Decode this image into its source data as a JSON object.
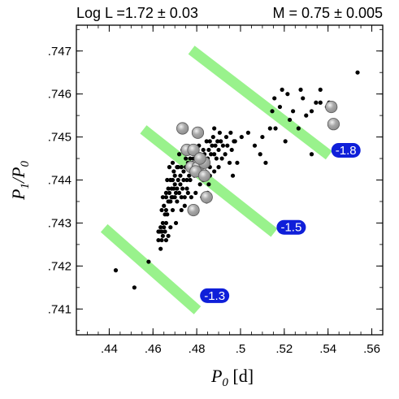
{
  "header": {
    "left": "Log  L =1.72 ± 0.03",
    "right": "M  = 0.75 ± 0.005"
  },
  "chart_data": {
    "type": "scatter",
    "title": "",
    "xlabel_main": "P",
    "xlabel_sub": "0",
    "xlabel_unit": "[d]",
    "ylabel_num": "P",
    "ylabel_num_sub": "1",
    "ylabel_den": "P",
    "ylabel_den_sub": "0",
    "xlim": [
      0.425,
      0.565
    ],
    "ylim": [
      0.7404,
      0.7476
    ],
    "x_ticks": [
      0.44,
      0.46,
      0.48,
      0.5,
      0.52,
      0.54,
      0.56
    ],
    "x_tick_labels": [
      ".44",
      ".46",
      ".48",
      ".5",
      ".52",
      ".54",
      ".56"
    ],
    "y_ticks": [
      0.741,
      0.742,
      0.743,
      0.744,
      0.745,
      0.746,
      0.747
    ],
    "y_tick_labels": [
      ".741",
      ".742",
      ".743",
      ".744",
      ".745",
      ".746",
      ".747"
    ],
    "grid": false,
    "colors": {
      "band": "#99f28c",
      "observed_points": "#000000",
      "model_spheres": "#8a8a8a",
      "label_box": "#0f1fd9",
      "label_text": "#ffffff"
    },
    "bands": [
      {
        "label": "-1.3",
        "from": [
          0.4395,
          0.7428
        ],
        "to": [
          0.4785,
          0.74105
        ]
      },
      {
        "label": "-1.5",
        "from": [
          0.4575,
          0.7451
        ],
        "to": [
          0.5135,
          0.74285
        ]
      },
      {
        "label": "-1.8",
        "from": [
          0.4795,
          0.74695
        ],
        "to": [
          0.5385,
          0.74465
        ]
      }
    ],
    "band_labels": [
      {
        "text": "-1.3",
        "x": 0.4815,
        "y": 0.74131
      },
      {
        "text": "-1.5",
        "x": 0.5165,
        "y": 0.7429
      },
      {
        "text": "-1.8",
        "x": 0.5415,
        "y": 0.74469
      }
    ],
    "observed_points": [
      [
        0.443,
        0.7419
      ],
      [
        0.4515,
        0.7415
      ],
      [
        0.458,
        0.7421
      ],
      [
        0.4625,
        0.7428
      ],
      [
        0.4625,
        0.7426
      ],
      [
        0.463,
        0.7428
      ],
      [
        0.4635,
        0.7424
      ],
      [
        0.4635,
        0.7429
      ],
      [
        0.464,
        0.7426
      ],
      [
        0.464,
        0.7428
      ],
      [
        0.4645,
        0.743
      ],
      [
        0.4645,
        0.7427
      ],
      [
        0.465,
        0.7434
      ],
      [
        0.465,
        0.7429
      ],
      [
        0.4655,
        0.7428
      ],
      [
        0.4655,
        0.7432
      ],
      [
        0.466,
        0.7437
      ],
      [
        0.466,
        0.7436
      ],
      [
        0.466,
        0.7433
      ],
      [
        0.466,
        0.743
      ],
      [
        0.4665,
        0.7432
      ],
      [
        0.467,
        0.7427
      ],
      [
        0.467,
        0.7435
      ],
      [
        0.467,
        0.7438
      ],
      [
        0.4675,
        0.7437
      ],
      [
        0.4675,
        0.7435
      ],
      [
        0.468,
        0.744
      ],
      [
        0.468,
        0.7435
      ],
      [
        0.468,
        0.7429
      ],
      [
        0.4685,
        0.7438
      ],
      [
        0.4685,
        0.7436
      ],
      [
        0.469,
        0.744
      ],
      [
        0.469,
        0.7436
      ],
      [
        0.469,
        0.7433
      ],
      [
        0.4695,
        0.7438
      ],
      [
        0.4695,
        0.7442
      ],
      [
        0.47,
        0.7436
      ],
      [
        0.47,
        0.7439
      ],
      [
        0.47,
        0.7441
      ],
      [
        0.4705,
        0.7437
      ],
      [
        0.4705,
        0.743
      ],
      [
        0.471,
        0.7443
      ],
      [
        0.471,
        0.7438
      ],
      [
        0.471,
        0.7435
      ],
      [
        0.4715,
        0.7443
      ],
      [
        0.4715,
        0.744
      ],
      [
        0.472,
        0.7437
      ],
      [
        0.472,
        0.7446
      ],
      [
        0.4725,
        0.7441
      ],
      [
        0.4725,
        0.7439
      ],
      [
        0.473,
        0.7436
      ],
      [
        0.473,
        0.7443
      ],
      [
        0.473,
        0.7433
      ],
      [
        0.4735,
        0.7447
      ],
      [
        0.4735,
        0.7438
      ],
      [
        0.474,
        0.7442
      ],
      [
        0.474,
        0.744
      ],
      [
        0.4745,
        0.7436
      ],
      [
        0.4745,
        0.7434
      ],
      [
        0.475,
        0.7445
      ],
      [
        0.475,
        0.7443
      ],
      [
        0.4755,
        0.744
      ],
      [
        0.4755,
        0.7438
      ],
      [
        0.476,
        0.7437
      ],
      [
        0.476,
        0.7444
      ],
      [
        0.4765,
        0.7441
      ],
      [
        0.477,
        0.7445
      ],
      [
        0.477,
        0.744
      ],
      [
        0.4775,
        0.7436
      ],
      [
        0.478,
        0.7442
      ],
      [
        0.478,
        0.7444
      ],
      [
        0.4785,
        0.7445
      ],
      [
        0.479,
        0.7441
      ],
      [
        0.479,
        0.7443
      ],
      [
        0.4795,
        0.7446
      ],
      [
        0.48,
        0.7444
      ],
      [
        0.48,
        0.7446
      ],
      [
        0.4805,
        0.7442
      ],
      [
        0.481,
        0.7448
      ],
      [
        0.481,
        0.7445
      ],
      [
        0.4815,
        0.7446
      ],
      [
        0.482,
        0.7443
      ],
      [
        0.4825,
        0.7445
      ],
      [
        0.483,
        0.7447
      ],
      [
        0.483,
        0.7444
      ],
      [
        0.4835,
        0.7446
      ],
      [
        0.484,
        0.7442
      ],
      [
        0.4845,
        0.7449
      ],
      [
        0.485,
        0.7445
      ],
      [
        0.4855,
        0.7447
      ],
      [
        0.486,
        0.7449
      ],
      [
        0.486,
        0.7443
      ],
      [
        0.4865,
        0.7446
      ],
      [
        0.487,
        0.7448
      ],
      [
        0.4875,
        0.745
      ],
      [
        0.488,
        0.7446
      ],
      [
        0.488,
        0.7452
      ],
      [
        0.4885,
        0.7448
      ],
      [
        0.489,
        0.7445
      ],
      [
        0.4895,
        0.7449
      ],
      [
        0.49,
        0.7447
      ],
      [
        0.4905,
        0.7451
      ],
      [
        0.491,
        0.7449
      ],
      [
        0.4915,
        0.7445
      ],
      [
        0.492,
        0.7448
      ],
      [
        0.493,
        0.7446
      ],
      [
        0.4935,
        0.745
      ],
      [
        0.494,
        0.7448
      ],
      [
        0.495,
        0.7444
      ],
      [
        0.496,
        0.7447
      ],
      [
        0.497,
        0.7449
      ],
      [
        0.483,
        0.744
      ],
      [
        0.486,
        0.7441
      ],
      [
        0.488,
        0.7442
      ],
      [
        0.49,
        0.7443
      ],
      [
        0.4845,
        0.7435
      ],
      [
        0.4795,
        0.7437
      ],
      [
        0.4795,
        0.7433
      ],
      [
        0.4815,
        0.7439
      ],
      [
        0.4855,
        0.7439
      ],
      [
        0.4825,
        0.7436
      ],
      [
        0.485,
        0.7437
      ],
      [
        0.469,
        0.7444
      ],
      [
        0.4665,
        0.744
      ],
      [
        0.4645,
        0.7436
      ],
      [
        0.464,
        0.7433
      ],
      [
        0.4675,
        0.7443
      ],
      [
        0.466,
        0.7426
      ],
      [
        0.5005,
        0.745
      ],
      [
        0.5035,
        0.7451
      ],
      [
        0.5065,
        0.7448
      ],
      [
        0.51,
        0.745
      ],
      [
        0.509,
        0.7446
      ],
      [
        0.5145,
        0.7456
      ],
      [
        0.516,
        0.7452
      ],
      [
        0.518,
        0.7457
      ],
      [
        0.519,
        0.7461
      ],
      [
        0.5215,
        0.746
      ],
      [
        0.524,
        0.7456
      ],
      [
        0.5275,
        0.7461
      ],
      [
        0.53,
        0.7455
      ],
      [
        0.5325,
        0.7456
      ],
      [
        0.5345,
        0.7458
      ],
      [
        0.5365,
        0.7461
      ],
      [
        0.5365,
        0.7458
      ],
      [
        0.5405,
        0.7458
      ],
      [
        0.5325,
        0.7446
      ],
      [
        0.5265,
        0.7452
      ],
      [
        0.5205,
        0.7449
      ],
      [
        0.5135,
        0.7452
      ],
      [
        0.5535,
        0.7465
      ],
      [
        0.5155,
        0.7459
      ],
      [
        0.5225,
        0.7454
      ],
      [
        0.5285,
        0.7459
      ],
      [
        0.5395,
        0.7457
      ],
      [
        0.5115,
        0.7444
      ],
      [
        0.4985,
        0.7444
      ],
      [
        0.4975,
        0.7449
      ],
      [
        0.4955,
        0.7451
      ],
      [
        0.4965,
        0.7441
      ]
    ],
    "model_spheres": [
      [
        0.4735,
        0.7452
      ],
      [
        0.4805,
        0.7451
      ],
      [
        0.4755,
        0.7447
      ],
      [
        0.4785,
        0.7447
      ],
      [
        0.4775,
        0.7443
      ],
      [
        0.4805,
        0.7443
      ],
      [
        0.4835,
        0.7444
      ],
      [
        0.4815,
        0.7445
      ],
      [
        0.4795,
        0.7442
      ],
      [
        0.4835,
        0.7441
      ],
      [
        0.4845,
        0.7436
      ],
      [
        0.4785,
        0.7433
      ],
      [
        0.5415,
        0.7457
      ],
      [
        0.5425,
        0.7453
      ]
    ]
  }
}
